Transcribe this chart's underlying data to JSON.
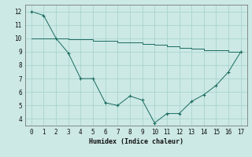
{
  "xlabel": "Humidex (Indice chaleur)",
  "ylabel": "",
  "bg_color": "#cce9e5",
  "grid_color": "#aad4cf",
  "line_color": "#1a6b60",
  "x_min": -0.5,
  "x_max": 17.5,
  "y_min": 3.5,
  "y_max": 12.5,
  "line1_x": [
    0,
    1,
    2,
    3,
    4,
    5,
    6,
    7,
    8,
    9,
    10,
    11,
    12,
    13,
    14,
    15,
    16,
    17
  ],
  "line1_y": [
    12.0,
    11.7,
    10.0,
    8.9,
    7.0,
    7.0,
    5.2,
    5.0,
    5.7,
    5.4,
    3.7,
    4.4,
    4.4,
    5.3,
    5.8,
    6.5,
    7.5,
    9.0
  ],
  "line2_x": [
    0,
    1,
    2,
    3,
    4,
    5,
    6,
    7,
    8,
    9,
    10,
    11,
    12,
    13,
    14,
    15,
    16,
    17
  ],
  "line2_y": [
    10.0,
    10.0,
    10.0,
    9.9,
    9.9,
    9.8,
    9.8,
    9.7,
    9.7,
    9.6,
    9.5,
    9.4,
    9.3,
    9.2,
    9.1,
    9.1,
    9.0,
    9.0
  ],
  "yticks": [
    4,
    5,
    6,
    7,
    8,
    9,
    10,
    11,
    12
  ],
  "xticks": [
    0,
    1,
    2,
    3,
    4,
    5,
    6,
    7,
    8,
    9,
    10,
    11,
    12,
    13,
    14,
    15,
    16,
    17
  ],
  "font_family": "monospace",
  "tick_fontsize": 5.5,
  "xlabel_fontsize": 6.0
}
